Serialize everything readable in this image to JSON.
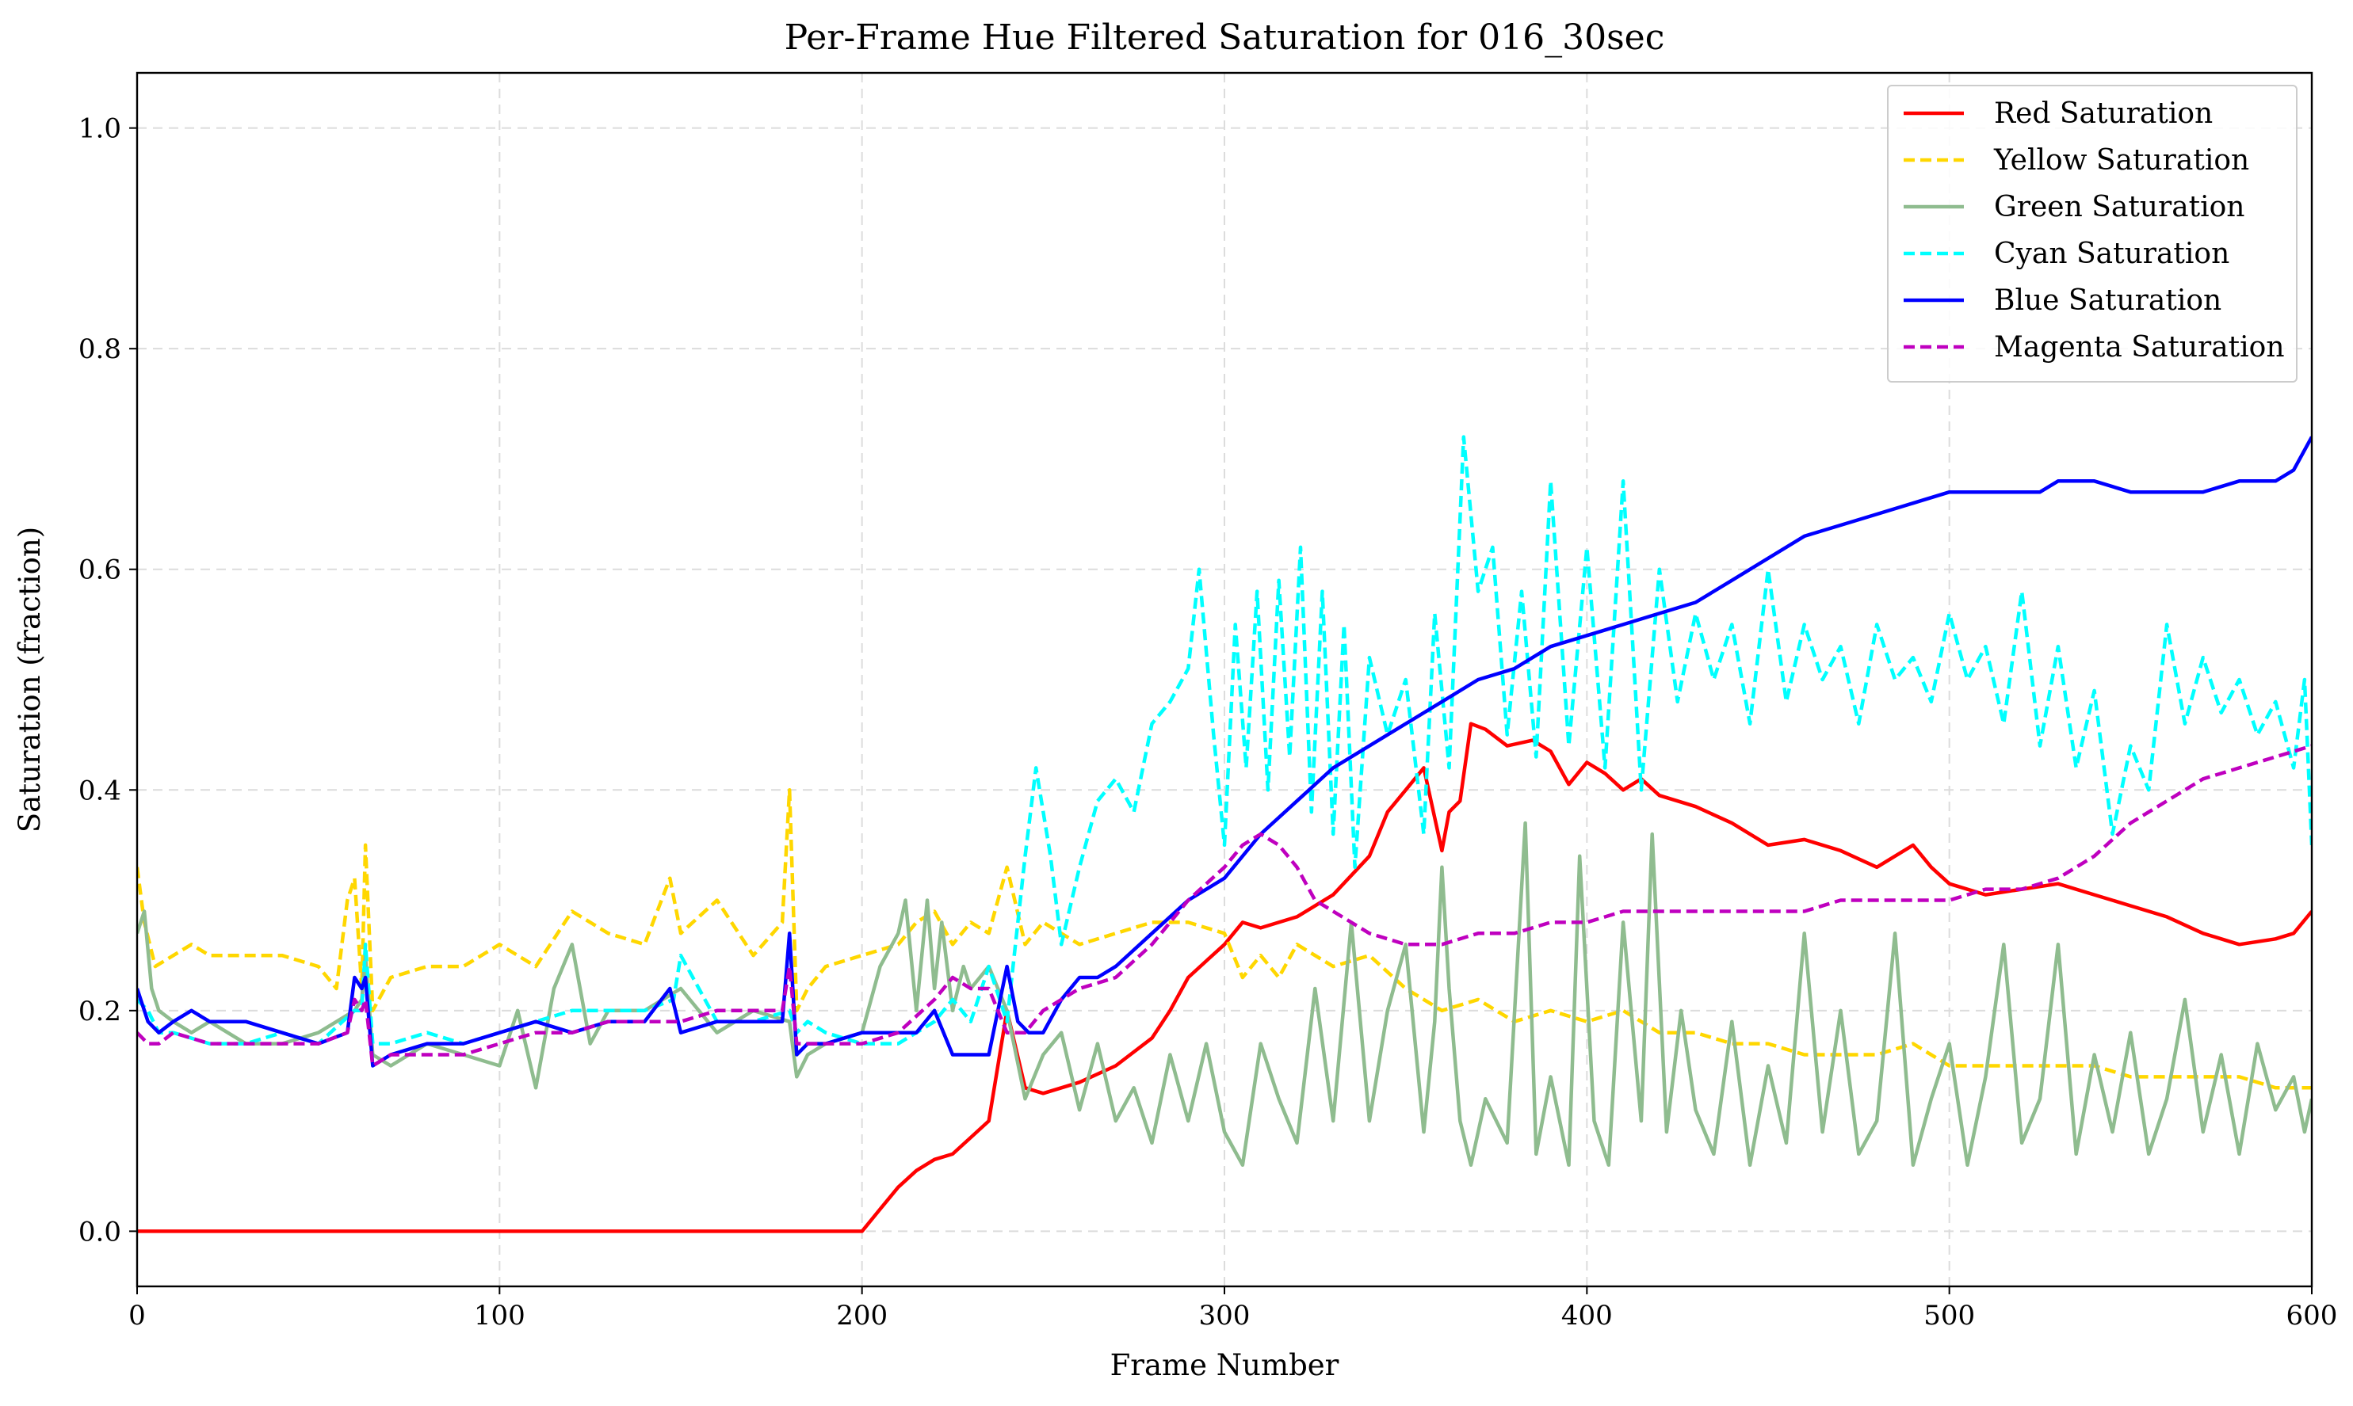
{
  "chart_data": {
    "type": "line",
    "title": "Per-Frame Hue Filtered Saturation for 016_30sec",
    "xlabel": "Frame Number",
    "ylabel": "Saturation (fraction)",
    "xlim": [
      0,
      600
    ],
    "ylim": [
      -0.05,
      1.05
    ],
    "xticks": [
      0,
      100,
      200,
      300,
      400,
      500,
      600
    ],
    "xtick_labels": [
      "0",
      "100",
      "200",
      "300",
      "400",
      "500",
      "600"
    ],
    "yticks": [
      0.0,
      0.2,
      0.4,
      0.6,
      0.8,
      1.0
    ],
    "ytick_labels": [
      "0.0",
      "0.2",
      "0.4",
      "0.6",
      "0.8",
      "1.0"
    ],
    "grid": true,
    "legend_position": "top-right",
    "series": [
      {
        "name": "Red Saturation",
        "color": "#ff0000",
        "dash": "solid",
        "x": [
          0,
          50,
          100,
          150,
          195,
          200,
          205,
          210,
          215,
          220,
          225,
          230,
          235,
          240,
          245,
          250,
          260,
          270,
          280,
          285,
          290,
          295,
          300,
          305,
          310,
          315,
          320,
          330,
          340,
          345,
          350,
          355,
          360,
          362,
          365,
          368,
          372,
          378,
          385,
          390,
          395,
          400,
          405,
          410,
          415,
          420,
          430,
          440,
          450,
          460,
          470,
          480,
          490,
          495,
          500,
          510,
          520,
          530,
          540,
          550,
          560,
          570,
          580,
          590,
          595,
          600
        ],
        "y": [
          0.0,
          0.0,
          0.0,
          0.0,
          0.0,
          0.0,
          0.02,
          0.04,
          0.055,
          0.065,
          0.07,
          0.085,
          0.1,
          0.2,
          0.13,
          0.125,
          0.135,
          0.15,
          0.175,
          0.2,
          0.23,
          0.245,
          0.26,
          0.28,
          0.275,
          0.28,
          0.285,
          0.305,
          0.34,
          0.38,
          0.4,
          0.42,
          0.345,
          0.38,
          0.39,
          0.46,
          0.455,
          0.44,
          0.445,
          0.435,
          0.405,
          0.425,
          0.415,
          0.4,
          0.41,
          0.395,
          0.385,
          0.37,
          0.35,
          0.355,
          0.345,
          0.33,
          0.35,
          0.33,
          0.315,
          0.305,
          0.31,
          0.315,
          0.305,
          0.295,
          0.285,
          0.27,
          0.26,
          0.265,
          0.27,
          0.29
        ]
      },
      {
        "name": "Yellow Saturation",
        "color": "#ffd700",
        "dash": "dashed",
        "x": [
          0,
          2,
          5,
          10,
          15,
          20,
          30,
          40,
          50,
          55,
          58,
          60,
          62,
          63,
          65,
          70,
          80,
          90,
          100,
          110,
          120,
          130,
          140,
          147,
          150,
          160,
          170,
          178,
          180,
          182,
          185,
          190,
          200,
          210,
          215,
          220,
          225,
          230,
          235,
          240,
          245,
          250,
          260,
          270,
          280,
          290,
          300,
          305,
          310,
          315,
          320,
          330,
          340,
          350,
          360,
          370,
          380,
          390,
          400,
          410,
          420,
          430,
          440,
          450,
          460,
          470,
          480,
          490,
          500,
          510,
          520,
          530,
          540,
          550,
          560,
          570,
          580,
          590,
          600
        ],
        "y": [
          0.33,
          0.28,
          0.24,
          0.25,
          0.26,
          0.25,
          0.25,
          0.25,
          0.24,
          0.22,
          0.3,
          0.32,
          0.22,
          0.35,
          0.2,
          0.23,
          0.24,
          0.24,
          0.26,
          0.24,
          0.29,
          0.27,
          0.26,
          0.32,
          0.27,
          0.3,
          0.25,
          0.28,
          0.4,
          0.2,
          0.22,
          0.24,
          0.25,
          0.26,
          0.28,
          0.29,
          0.26,
          0.28,
          0.27,
          0.33,
          0.26,
          0.28,
          0.26,
          0.27,
          0.28,
          0.28,
          0.27,
          0.23,
          0.25,
          0.23,
          0.26,
          0.24,
          0.25,
          0.22,
          0.2,
          0.21,
          0.19,
          0.2,
          0.19,
          0.2,
          0.18,
          0.18,
          0.17,
          0.17,
          0.16,
          0.16,
          0.16,
          0.17,
          0.15,
          0.15,
          0.15,
          0.15,
          0.15,
          0.14,
          0.14,
          0.14,
          0.14,
          0.13,
          0.13
        ]
      },
      {
        "name": "Green Saturation",
        "color": "#8fbc8f",
        "dash": "solid",
        "x": [
          0,
          2,
          4,
          6,
          10,
          15,
          20,
          30,
          40,
          50,
          60,
          62,
          63,
          65,
          70,
          80,
          90,
          100,
          105,
          110,
          115,
          120,
          125,
          130,
          140,
          150,
          160,
          170,
          180,
          182,
          185,
          190,
          200,
          205,
          210,
          212,
          215,
          218,
          220,
          222,
          225,
          228,
          230,
          235,
          240,
          245,
          250,
          255,
          260,
          265,
          270,
          275,
          280,
          285,
          290,
          295,
          300,
          305,
          310,
          315,
          320,
          325,
          330,
          335,
          340,
          345,
          350,
          355,
          358,
          360,
          362,
          365,
          368,
          372,
          378,
          383,
          386,
          390,
          395,
          398,
          402,
          406,
          410,
          415,
          418,
          422,
          426,
          430,
          435,
          440,
          445,
          450,
          455,
          460,
          465,
          470,
          475,
          480,
          485,
          490,
          495,
          500,
          505,
          510,
          515,
          520,
          525,
          530,
          535,
          540,
          545,
          550,
          555,
          560,
          565,
          570,
          575,
          580,
          585,
          590,
          595,
          598,
          600
        ],
        "y": [
          0.27,
          0.29,
          0.22,
          0.2,
          0.19,
          0.18,
          0.19,
          0.17,
          0.17,
          0.18,
          0.2,
          0.21,
          0.25,
          0.16,
          0.15,
          0.17,
          0.16,
          0.15,
          0.2,
          0.13,
          0.22,
          0.26,
          0.17,
          0.2,
          0.2,
          0.22,
          0.18,
          0.2,
          0.19,
          0.14,
          0.16,
          0.17,
          0.18,
          0.24,
          0.27,
          0.3,
          0.2,
          0.3,
          0.22,
          0.28,
          0.2,
          0.24,
          0.22,
          0.24,
          0.2,
          0.12,
          0.16,
          0.18,
          0.11,
          0.17,
          0.1,
          0.13,
          0.08,
          0.16,
          0.1,
          0.17,
          0.09,
          0.06,
          0.17,
          0.12,
          0.08,
          0.22,
          0.1,
          0.28,
          0.1,
          0.2,
          0.26,
          0.09,
          0.19,
          0.33,
          0.22,
          0.1,
          0.06,
          0.12,
          0.08,
          0.37,
          0.07,
          0.14,
          0.06,
          0.34,
          0.1,
          0.06,
          0.28,
          0.1,
          0.36,
          0.09,
          0.2,
          0.11,
          0.07,
          0.19,
          0.06,
          0.15,
          0.08,
          0.27,
          0.09,
          0.2,
          0.07,
          0.1,
          0.27,
          0.06,
          0.12,
          0.17,
          0.06,
          0.14,
          0.26,
          0.08,
          0.12,
          0.26,
          0.07,
          0.16,
          0.09,
          0.18,
          0.07,
          0.12,
          0.21,
          0.09,
          0.16,
          0.07,
          0.17,
          0.11,
          0.14,
          0.09,
          0.12
        ]
      },
      {
        "name": "Cyan Saturation",
        "color": "#00ffff",
        "dash": "dashed",
        "x": [
          0,
          3,
          6,
          10,
          20,
          30,
          40,
          50,
          60,
          62,
          63,
          65,
          70,
          80,
          90,
          100,
          110,
          120,
          130,
          140,
          148,
          150,
          160,
          170,
          180,
          182,
          185,
          190,
          200,
          210,
          220,
          225,
          230,
          235,
          240,
          245,
          248,
          252,
          255,
          260,
          265,
          270,
          275,
          280,
          285,
          290,
          293,
          297,
          300,
          303,
          306,
          309,
          312,
          315,
          318,
          321,
          324,
          327,
          330,
          333,
          336,
          340,
          345,
          350,
          355,
          358,
          362,
          366,
          370,
          374,
          378,
          382,
          386,
          390,
          395,
          400,
          405,
          410,
          415,
          420,
          425,
          430,
          435,
          440,
          445,
          450,
          455,
          460,
          465,
          470,
          475,
          480,
          485,
          490,
          495,
          500,
          505,
          510,
          515,
          520,
          525,
          530,
          535,
          540,
          545,
          550,
          555,
          560,
          565,
          570,
          575,
          580,
          585,
          590,
          595,
          598,
          600
        ],
        "y": [
          0.21,
          0.2,
          0.18,
          0.18,
          0.17,
          0.17,
          0.18,
          0.17,
          0.2,
          0.2,
          0.26,
          0.17,
          0.17,
          0.18,
          0.17,
          0.18,
          0.19,
          0.2,
          0.2,
          0.2,
          0.21,
          0.25,
          0.19,
          0.19,
          0.2,
          0.18,
          0.19,
          0.18,
          0.17,
          0.17,
          0.19,
          0.21,
          0.19,
          0.24,
          0.19,
          0.34,
          0.42,
          0.34,
          0.26,
          0.33,
          0.39,
          0.41,
          0.38,
          0.46,
          0.48,
          0.51,
          0.6,
          0.45,
          0.35,
          0.55,
          0.42,
          0.58,
          0.4,
          0.59,
          0.43,
          0.62,
          0.38,
          0.58,
          0.36,
          0.55,
          0.33,
          0.52,
          0.45,
          0.5,
          0.36,
          0.56,
          0.42,
          0.72,
          0.58,
          0.62,
          0.45,
          0.58,
          0.43,
          0.68,
          0.44,
          0.62,
          0.42,
          0.68,
          0.4,
          0.6,
          0.48,
          0.56,
          0.5,
          0.55,
          0.46,
          0.6,
          0.48,
          0.55,
          0.5,
          0.53,
          0.46,
          0.55,
          0.5,
          0.52,
          0.48,
          0.56,
          0.5,
          0.53,
          0.46,
          0.58,
          0.44,
          0.53,
          0.42,
          0.49,
          0.36,
          0.44,
          0.4,
          0.55,
          0.46,
          0.52,
          0.47,
          0.5,
          0.45,
          0.48,
          0.42,
          0.5,
          0.35
        ]
      },
      {
        "name": "Blue Saturation",
        "color": "#0000ff",
        "dash": "solid",
        "x": [
          0,
          3,
          6,
          10,
          15,
          20,
          30,
          40,
          50,
          58,
          60,
          62,
          63,
          65,
          70,
          80,
          90,
          100,
          110,
          120,
          130,
          140,
          147,
          150,
          160,
          170,
          178,
          180,
          182,
          185,
          190,
          200,
          210,
          215,
          220,
          225,
          230,
          235,
          240,
          243,
          246,
          250,
          255,
          260,
          265,
          270,
          280,
          290,
          300,
          310,
          320,
          330,
          340,
          350,
          360,
          370,
          380,
          390,
          400,
          410,
          420,
          430,
          440,
          450,
          460,
          470,
          480,
          490,
          500,
          510,
          520,
          525,
          530,
          540,
          550,
          560,
          570,
          580,
          590,
          595,
          600
        ],
        "y": [
          0.22,
          0.19,
          0.18,
          0.19,
          0.2,
          0.19,
          0.19,
          0.18,
          0.17,
          0.18,
          0.23,
          0.22,
          0.23,
          0.15,
          0.16,
          0.17,
          0.17,
          0.18,
          0.19,
          0.18,
          0.19,
          0.19,
          0.22,
          0.18,
          0.19,
          0.19,
          0.19,
          0.27,
          0.16,
          0.17,
          0.17,
          0.18,
          0.18,
          0.18,
          0.2,
          0.16,
          0.16,
          0.16,
          0.24,
          0.19,
          0.18,
          0.18,
          0.21,
          0.23,
          0.23,
          0.24,
          0.27,
          0.3,
          0.32,
          0.36,
          0.39,
          0.42,
          0.44,
          0.46,
          0.48,
          0.5,
          0.51,
          0.53,
          0.54,
          0.55,
          0.56,
          0.57,
          0.59,
          0.61,
          0.63,
          0.64,
          0.65,
          0.66,
          0.67,
          0.67,
          0.67,
          0.67,
          0.68,
          0.68,
          0.67,
          0.67,
          0.67,
          0.68,
          0.68,
          0.69,
          0.72
        ]
      },
      {
        "name": "Magenta Saturation",
        "color": "#bf00bf",
        "dash": "dashed",
        "x": [
          0,
          3,
          6,
          10,
          20,
          30,
          40,
          50,
          58,
          60,
          62,
          63,
          65,
          70,
          80,
          90,
          100,
          110,
          120,
          130,
          140,
          150,
          160,
          170,
          178,
          180,
          182,
          185,
          190,
          200,
          210,
          220,
          225,
          230,
          235,
          240,
          245,
          250,
          260,
          270,
          280,
          290,
          300,
          305,
          310,
          315,
          320,
          325,
          330,
          340,
          350,
          360,
          370,
          380,
          390,
          400,
          410,
          420,
          430,
          440,
          450,
          460,
          470,
          480,
          490,
          500,
          510,
          520,
          530,
          540,
          550,
          560,
          570,
          580,
          590,
          600
        ],
        "y": [
          0.18,
          0.17,
          0.17,
          0.18,
          0.17,
          0.17,
          0.17,
          0.17,
          0.18,
          0.21,
          0.2,
          0.21,
          0.15,
          0.16,
          0.16,
          0.16,
          0.17,
          0.18,
          0.18,
          0.19,
          0.19,
          0.19,
          0.2,
          0.2,
          0.2,
          0.24,
          0.17,
          0.17,
          0.17,
          0.17,
          0.18,
          0.21,
          0.23,
          0.22,
          0.22,
          0.18,
          0.18,
          0.2,
          0.22,
          0.23,
          0.26,
          0.3,
          0.33,
          0.35,
          0.36,
          0.35,
          0.33,
          0.3,
          0.29,
          0.27,
          0.26,
          0.26,
          0.27,
          0.27,
          0.28,
          0.28,
          0.29,
          0.29,
          0.29,
          0.29,
          0.29,
          0.29,
          0.3,
          0.3,
          0.3,
          0.3,
          0.31,
          0.31,
          0.32,
          0.34,
          0.37,
          0.39,
          0.41,
          0.42,
          0.43,
          0.44
        ]
      }
    ]
  }
}
